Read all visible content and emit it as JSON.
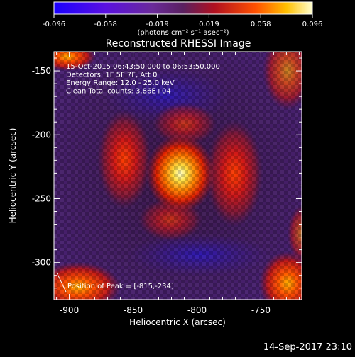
{
  "colorbar": {
    "ticks": [
      "-0.096",
      "-0.058",
      "-0.019",
      "0.019",
      "0.058",
      "0.096"
    ],
    "units": "(photons cm⁻² s⁻¹ asec⁻²)"
  },
  "plot": {
    "title": "Reconstructed RHESSI Image",
    "info_lines": [
      "15-Oct-2015 06:43:50.000 to 06:53:50.000",
      "Detectors: 1F 5F 7F, Att 0",
      "Energy Range: 12.0 - 25.0 keV",
      "Clean     Total counts: 3.86E+04"
    ],
    "peak_label": "Position of Peak = [-815,-234]"
  },
  "footer": {
    "timestamp": "14-Sep-2017 23:10"
  },
  "chart_data": {
    "type": "heatmap",
    "title": "Reconstructed RHESSI Image",
    "xlabel": "Heliocentric X (arcsec)",
    "ylabel": "Heliocentric Y (arcsec)",
    "xlim": [
      -912,
      -718
    ],
    "ylim": [
      -329,
      -135
    ],
    "x_ticks": [
      -900,
      -850,
      -800,
      -750
    ],
    "y_ticks": [
      -300,
      -250,
      -200,
      -150
    ],
    "x_tick_labels": [
      "-900",
      "-850",
      "-800",
      "-750"
    ],
    "y_tick_labels": [
      "-300",
      "-250",
      "-200",
      "-150"
    ],
    "color_scale": {
      "min": -0.096,
      "max": 0.096
    },
    "peak": {
      "x": -815,
      "y": -234
    },
    "grid": false
  }
}
